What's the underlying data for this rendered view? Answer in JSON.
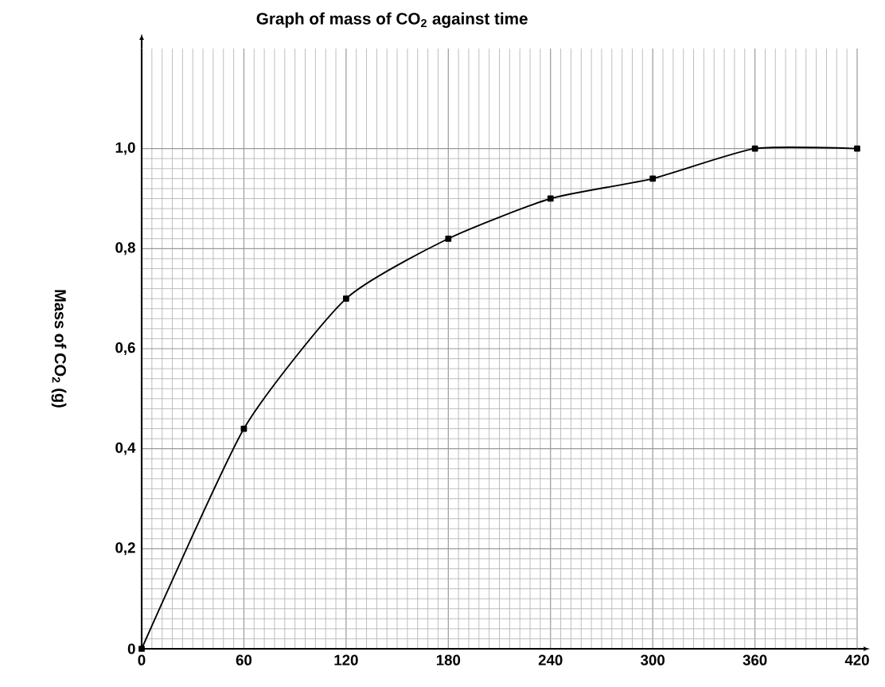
{
  "chart_data": {
    "type": "line",
    "title": "Graph of mass of CO$_{2}$ against time",
    "ylabel": "Mass of CO$_{2}$ (g)",
    "x": [
      0,
      60,
      120,
      180,
      240,
      300,
      360,
      420
    ],
    "series": [
      {
        "color": "#000000",
        "values": [
          0,
          0.44,
          0.7,
          0.82,
          0.9,
          0.94,
          1.0,
          1.0
        ]
      }
    ],
    "xlim": [
      0,
      420
    ],
    "ylim": [
      0,
      1.2
    ],
    "xticks": [
      0,
      60,
      120,
      180,
      240,
      300,
      360,
      420
    ],
    "yticks": [
      0,
      {
        "value": 0.2,
        "label": "0,2"
      },
      {
        "value": 0.4,
        "label": "0,4"
      },
      {
        "value": 0.6,
        "label": "0,6"
      },
      {
        "value": 0.8,
        "label": "0,8"
      },
      {
        "value": 1.0,
        "label": "1,0"
      }
    ],
    "grid": true,
    "marker": "square",
    "line_style": "solid"
  }
}
